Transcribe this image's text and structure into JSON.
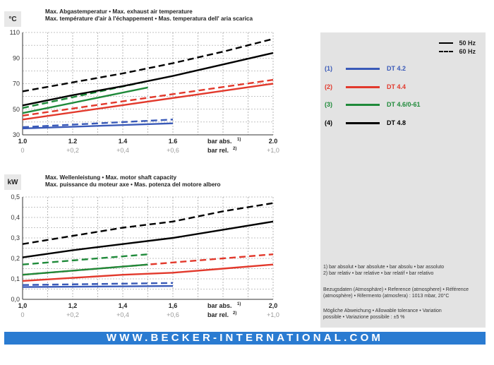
{
  "top_chart": {
    "unit": "°C",
    "title_line1": "Max. Abgastemperatur • Max. exhaust air temperature",
    "title_line2": "Max. température d'air à l'échappement • Mas. temperatura dell' aria scarica",
    "x_ticks_abs": [
      "1.0",
      "1.2",
      "1.4",
      "1.6",
      "2.0"
    ],
    "x_ticks_rel": [
      "0",
      "+0,2",
      "+0,4",
      "+0,6",
      "+1,0"
    ],
    "x_label_abs": "bar abs.",
    "x_label_rel": "bar rel.",
    "sup_abs": "1)",
    "sup_rel": "2)",
    "y_ticks": [
      "30",
      "50",
      "70",
      "90",
      "110"
    ]
  },
  "bottom_chart": {
    "unit": "kW",
    "title_line1": "Max. Wellenleistung • Max. motor shaft capacity",
    "title_line2": "Max. puissance du moteur axe • Mas. potenza del motore albero",
    "x_ticks_abs": [
      "1,0",
      "1,2",
      "1,4",
      "1,6",
      "2,0"
    ],
    "x_ticks_rel": [
      "0",
      "+0,2",
      "+0,4",
      "+0,6",
      "+1,0"
    ],
    "x_label_abs": "bar abs.",
    "x_label_rel": "bar rel.",
    "sup_abs": "1)",
    "sup_rel": "2)",
    "y_ticks": [
      "0,0",
      "0,1",
      "0,2",
      "0,3",
      "0,4",
      "0,5"
    ]
  },
  "legend": {
    "hz50": "50 Hz",
    "hz60": "60 Hz",
    "items": [
      {
        "num": "(1)",
        "label": "DT 4.2",
        "color": "#3a5ab8"
      },
      {
        "num": "(2)",
        "label": "DT 4.4",
        "color": "#e2392c"
      },
      {
        "num": "(3)",
        "label": "DT 4.6/0-61",
        "color": "#1f8a3a"
      },
      {
        "num": "(4)",
        "label": "DT 4.8",
        "color": "#000000"
      }
    ]
  },
  "notes": {
    "n1": "1) bar absolut • bar absolute • bar absolu • bar assoluto",
    "n2": "2) bar relativ • bar relative • bar relatif • bar relativo",
    "ref1": "Bezugsdaten (Atmosphäre) • Reference (atmosphere) • Référence",
    "ref2": "(atmosphère) • Rifermento (atmosfera) : 1013 mbar, 20°C",
    "tol1": "Mögliche Abweichung • Allowable tolerance • Variation",
    "tol2": "possible • Variazione possibile : ±5 %"
  },
  "footer": {
    "url": "WWW.BECKER-INTERNATIONAL.COM"
  },
  "chart_data": [
    {
      "type": "line",
      "title": "Max. Abgastemperatur • Max. exhaust air temperature",
      "ylabel": "°C",
      "xlabel": "bar abs.",
      "xlim": [
        1.0,
        2.0
      ],
      "ylim": [
        30,
        110
      ],
      "grid": true,
      "series": [
        {
          "name": "DT 4.2",
          "hz": "50 Hz",
          "color": "#3a5ab8",
          "dash": false,
          "x": [
            1.0,
            1.6
          ],
          "y": [
            35,
            39
          ]
        },
        {
          "name": "DT 4.2",
          "hz": "60 Hz",
          "color": "#3a5ab8",
          "dash": true,
          "x": [
            1.0,
            1.6
          ],
          "y": [
            36,
            42
          ]
        },
        {
          "name": "DT 4.4",
          "hz": "50 Hz",
          "color": "#e2392c",
          "dash": false,
          "x": [
            1.0,
            2.0
          ],
          "y": [
            42,
            70
          ]
        },
        {
          "name": "DT 4.4",
          "hz": "60 Hz",
          "color": "#e2392c",
          "dash": true,
          "x": [
            1.0,
            2.0
          ],
          "y": [
            45,
            73
          ]
        },
        {
          "name": "DT 4.6/0-61",
          "hz": "50 Hz",
          "color": "#1f8a3a",
          "dash": false,
          "x": [
            1.0,
            1.5
          ],
          "y": [
            47,
            67
          ]
        },
        {
          "name": "DT 4.6/0-61",
          "hz": "60 Hz",
          "color": "#1f8a3a",
          "dash": true,
          "x": [
            1.0,
            1.5
          ],
          "y": [
            51,
            72
          ]
        },
        {
          "name": "DT 4.8",
          "hz": "50 Hz",
          "color": "#000000",
          "dash": false,
          "x": [
            1.0,
            1.2,
            1.4,
            1.6,
            1.8,
            2.0
          ],
          "y": [
            53,
            61,
            68,
            76,
            85,
            94
          ]
        },
        {
          "name": "DT 4.8",
          "hz": "60 Hz",
          "color": "#000000",
          "dash": true,
          "x": [
            1.0,
            1.2,
            1.4,
            1.6,
            1.8,
            2.0
          ],
          "y": [
            64,
            71,
            78,
            86,
            95,
            105
          ]
        }
      ]
    },
    {
      "type": "line",
      "title": "Max. Wellenleistung • Max. motor shaft capacity",
      "ylabel": "kW",
      "xlabel": "bar abs.",
      "xlim": [
        1.0,
        2.0
      ],
      "ylim": [
        0.0,
        0.5
      ],
      "grid": true,
      "series": [
        {
          "name": "DT 4.2",
          "hz": "50 Hz",
          "color": "#3a5ab8",
          "dash": false,
          "x": [
            1.0,
            1.6
          ],
          "y": [
            0.06,
            0.065
          ]
        },
        {
          "name": "DT 4.2",
          "hz": "60 Hz",
          "color": "#3a5ab8",
          "dash": true,
          "x": [
            1.0,
            1.6
          ],
          "y": [
            0.07,
            0.08
          ]
        },
        {
          "name": "DT 4.4",
          "hz": "50 Hz",
          "color": "#e2392c",
          "dash": false,
          "x": [
            1.0,
            1.2,
            1.4,
            1.6,
            1.8,
            2.0
          ],
          "y": [
            0.09,
            0.105,
            0.12,
            0.13,
            0.15,
            0.17
          ]
        },
        {
          "name": "DT 4.4",
          "hz": "60 Hz",
          "color": "#e2392c",
          "dash": true,
          "x": [
            1.0,
            1.2,
            1.4,
            1.6,
            1.8,
            2.0
          ],
          "y": [
            0.12,
            0.14,
            0.16,
            0.18,
            0.2,
            0.22
          ]
        },
        {
          "name": "DT 4.6/0-61",
          "hz": "50 Hz",
          "color": "#1f8a3a",
          "dash": false,
          "x": [
            1.0,
            1.5
          ],
          "y": [
            0.12,
            0.17
          ]
        },
        {
          "name": "DT 4.6/0-61",
          "hz": "60 Hz",
          "color": "#1f8a3a",
          "dash": true,
          "x": [
            1.0,
            1.5
          ],
          "y": [
            0.17,
            0.22
          ]
        },
        {
          "name": "DT 4.8",
          "hz": "50 Hz",
          "color": "#000000",
          "dash": false,
          "x": [
            1.0,
            1.2,
            1.4,
            1.6,
            1.8,
            2.0
          ],
          "y": [
            0.205,
            0.24,
            0.27,
            0.3,
            0.34,
            0.38
          ]
        },
        {
          "name": "DT 4.8",
          "hz": "60 Hz",
          "color": "#000000",
          "dash": true,
          "x": [
            1.0,
            1.2,
            1.4,
            1.6,
            1.8,
            2.0
          ],
          "y": [
            0.27,
            0.31,
            0.35,
            0.38,
            0.43,
            0.47
          ]
        }
      ]
    }
  ]
}
